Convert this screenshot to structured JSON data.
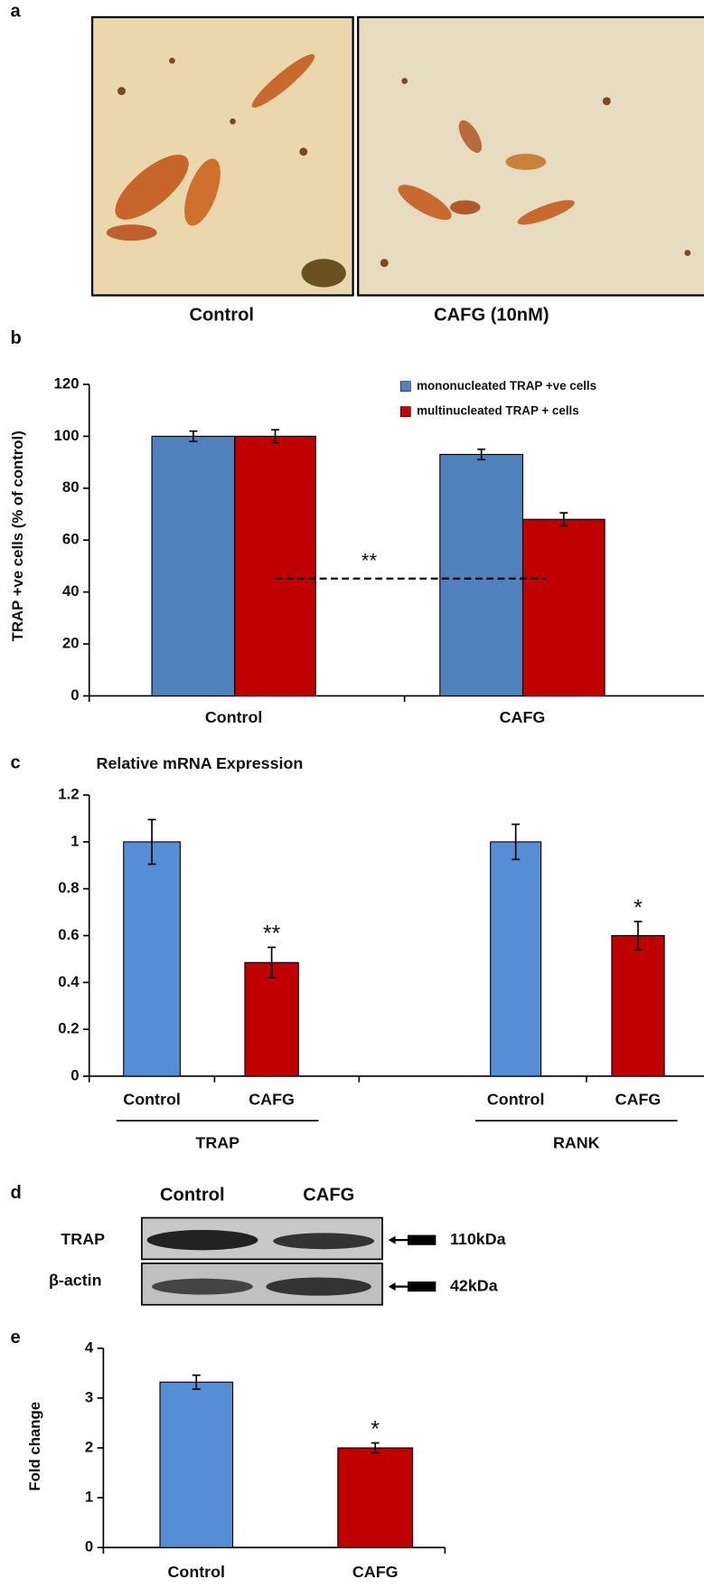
{
  "panel_a": {
    "label": "a",
    "captions": [
      "Control",
      "CAFG (10nM)"
    ]
  },
  "panel_d": {
    "label": "d",
    "columns": [
      "Control",
      "CAFG"
    ],
    "rows": [
      {
        "name": "TRAP",
        "size": "110kDa"
      },
      {
        "name": "β-actin",
        "size": "42kDa"
      }
    ]
  },
  "chart_data": [
    {
      "type": "grouped-bar",
      "panel": "b",
      "ylabel": "TRAP +ve cells (% of control)",
      "categories": [
        "Control",
        "CAFG"
      ],
      "series": [
        {
          "name": "mononucleated TRAP +ve cells",
          "color": "#4f81bd",
          "values": [
            100,
            93
          ],
          "errors": [
            2,
            2
          ]
        },
        {
          "name": "multinucleated TRAP + cells",
          "color": "#c00000",
          "values": [
            100,
            68
          ],
          "errors": [
            2.5,
            2.5
          ]
        }
      ],
      "annotation": "**",
      "ylim": [
        0,
        120
      ],
      "yticks": [
        0,
        20,
        40,
        60,
        80,
        100,
        120
      ],
      "legend": "top-right"
    },
    {
      "type": "bar",
      "panel": "c",
      "title": "Relative mRNA Expression",
      "categories": [
        "Control",
        "CAFG",
        "Control",
        "CAFG"
      ],
      "groups": [
        "TRAP",
        "RANK"
      ],
      "values": [
        1,
        0.485,
        1,
        0.6
      ],
      "errors": [
        0.095,
        0.065,
        0.075,
        0.06
      ],
      "colors": [
        "#558ed5",
        "#c00000",
        "#558ed5",
        "#c00000"
      ],
      "significance": [
        null,
        "**",
        null,
        "*"
      ],
      "ylim": [
        0,
        1.2
      ],
      "yticks": [
        0,
        0.2,
        0.4,
        0.6,
        0.8,
        1,
        1.2
      ]
    },
    {
      "type": "bar",
      "panel": "e",
      "ylabel": "Fold change",
      "categories": [
        "Control",
        "CAFG"
      ],
      "values": [
        3.32,
        2.0
      ],
      "errors": [
        0.14,
        0.1
      ],
      "colors": [
        "#558ed5",
        "#c00000"
      ],
      "significance": [
        null,
        "*"
      ],
      "ylim": [
        0,
        4
      ],
      "yticks": [
        0,
        1,
        2,
        3,
        4
      ]
    }
  ]
}
